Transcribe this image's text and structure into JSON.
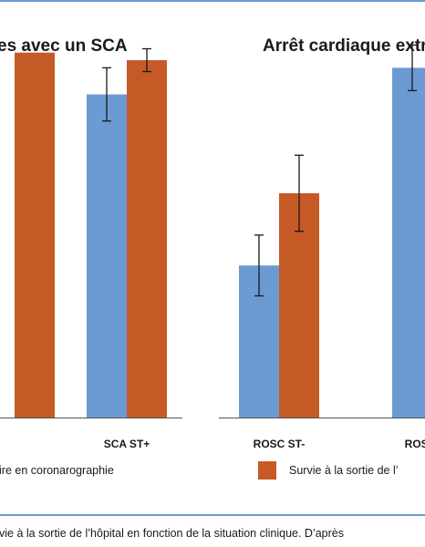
{
  "colors": {
    "blue": "#6b9bd2",
    "orange": "#c55a26",
    "rule": "#6b9bd2"
  },
  "panels": [
    {
      "title_visible": "es avec un SCA"
    },
    {
      "title_visible": "Arrêt cardiaque extr"
    }
  ],
  "categories": [
    "SCA ST+",
    "ROSC ST-",
    "ROSC"
  ],
  "legend": [
    {
      "text": "ire en coronarographie",
      "color": "#6b9bd2"
    },
    {
      "text": "Survie à la sortie de l’",
      "color": "#c55a26"
    }
  ],
  "caption": "vie à la sortie de l’hôpital en fonction de la situation clinique. D’après",
  "chart_data": {
    "type": "bar",
    "categories": [
      "(cut)",
      "SCA ST+",
      "ROSC ST-",
      "ROSC"
    ],
    "ylim": [
      0,
      100
    ],
    "grid": false,
    "series": [
      {
        "color": "#6b9bd2",
        "values": [
          null,
          85,
          40,
          92
        ],
        "err": [
          null,
          7,
          8,
          6
        ]
      },
      {
        "color": "#c55a26",
        "values": [
          96,
          94,
          59,
          null
        ],
        "err": [
          null,
          3,
          10,
          null
        ]
      }
    ]
  }
}
